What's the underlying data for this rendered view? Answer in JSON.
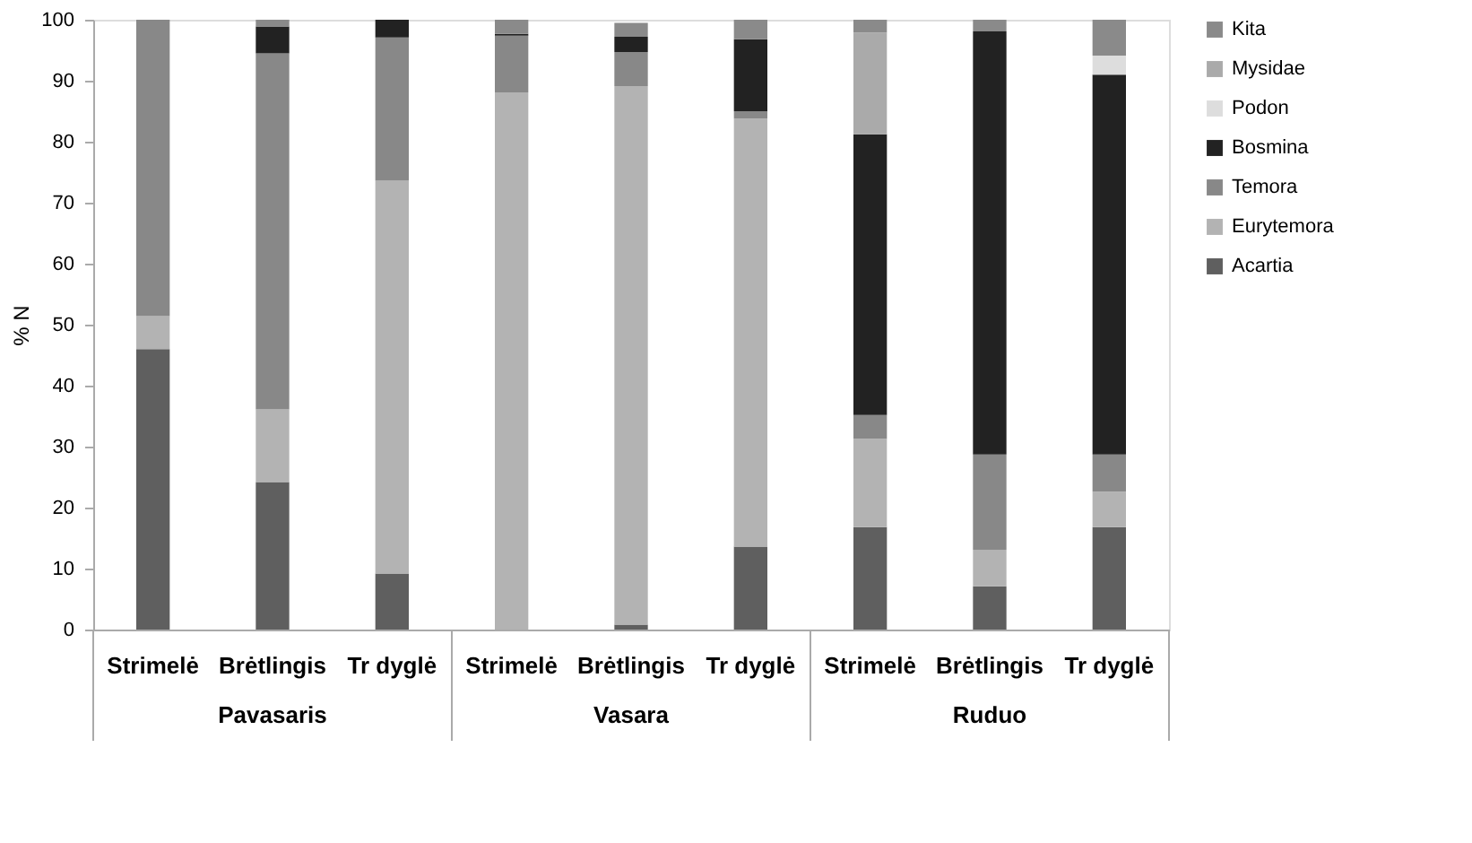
{
  "chart_data": {
    "type": "bar",
    "stacked": true,
    "ylabel": "% N",
    "categories": [
      "Strimelė",
      "Brėtlingis",
      "Tr dyglė",
      "Strimelė",
      "Brėtlingis",
      "Tr dyglė",
      "Strimelė",
      "Brėtlingis",
      "Tr dyglė"
    ],
    "series": [
      {
        "name": "Acartia",
        "color": "#5f5f5f",
        "values": [
          46,
          24.2,
          9.2,
          null,
          0.8,
          13.6,
          16.8,
          7.1,
          16.8
        ]
      },
      {
        "name": "Eurytemora",
        "color": "#b3b3b3",
        "values": [
          5.4,
          11.9,
          64.4,
          88.1,
          88.3,
          70.2,
          14.5,
          6.0,
          5.8
        ]
      },
      {
        "name": "Temora",
        "color": "#888888",
        "values": [
          48.6,
          58.4,
          23.5,
          9.3,
          5.6,
          1.2,
          3.9,
          15.6,
          6.1
        ]
      },
      {
        "name": "Bosmina",
        "color": "#222222",
        "values": [
          null,
          4.4,
          2.9,
          0.3,
          2.5,
          11.8,
          46.0,
          69.4,
          62.3
        ]
      },
      {
        "name": "Podon",
        "color": "#dddddd",
        "values": [
          null,
          null,
          null,
          null,
          null,
          null,
          null,
          null,
          3.1
        ]
      },
      {
        "name": "Mysidae",
        "color": "#aaaaaa",
        "values": [
          null,
          null,
          null,
          null,
          null,
          null,
          16.7,
          null,
          null
        ]
      },
      {
        "name": "Kita",
        "color": "#8a8a8a",
        "values": [
          null,
          1.1,
          null,
          2.3,
          2.3,
          3.2,
          2.1,
          1.9,
          5.9
        ]
      }
    ],
    "ylim": [
      0,
      100
    ],
    "yticks": [
      0,
      10,
      20,
      30,
      40,
      50,
      60,
      70,
      80,
      90,
      100
    ],
    "legend": "right",
    "grid": false,
    "annotations": [
      "Pavasaris",
      "Vasara",
      "Ruduo"
    ]
  }
}
